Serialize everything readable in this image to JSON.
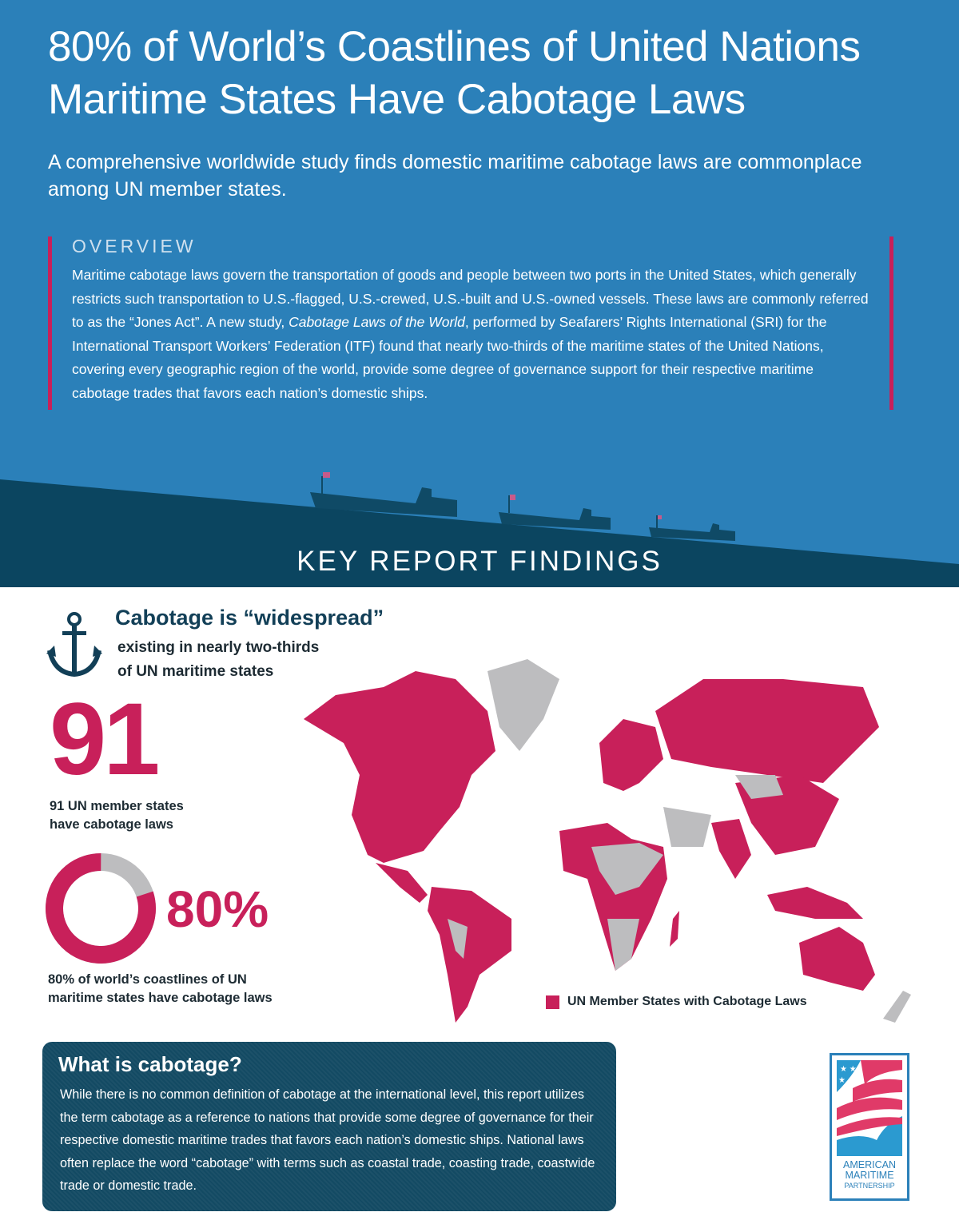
{
  "header": {
    "title": "80% of World’s Coastlines of United Nations Maritime States Have Cabotage Laws",
    "subtitle": "A comprehensive worldwide study finds domestic maritime cabotage laws are commonplace among UN member states."
  },
  "overview": {
    "label": "OVERVIEW",
    "body_pre": "Maritime cabotage laws govern the transportation of goods and people between two ports in the United States, which generally restricts such transportation to U.S.-flagged, U.S.-crewed, U.S.-built and U.S.-owned vessels.  These laws are commonly referred to as the “Jones Act”.  A new study, ",
    "body_italic": "Cabotage Laws of the World",
    "body_post": ", performed by Seafarers’ Rights International (SRI) for the International Transport Workers’ Federation (ITF) found that nearly two-thirds of the maritime states of the United Nations, covering every geographic region of the world, provide some degree of governance support for their respective maritime cabotage trades that favors each nation’s domestic ships."
  },
  "section_title": "KEY  REPORT FINDINGS",
  "findings": {
    "heading": "Cabotage is “widespread”",
    "subheading_1": "existing in nearly two-thirds",
    "subheading_2": "of UN maritime states",
    "stat_number": "91",
    "stat_caption_1": "91 UN member states",
    "stat_caption_2": "have cabotage laws",
    "coastline_percent": 80,
    "coastline_label": "80%",
    "coastline_caption_1": "80% of world’s coastlines of UN",
    "coastline_caption_2": "maritime states have cabotage laws",
    "map_legend": "UN Member States with Cabotage Laws"
  },
  "what": {
    "title": "What is cabotage?",
    "body": "While there is no common definition of cabotage at the international level, this report utilizes the term cabotage as a reference to nations that provide some degree of governance for their respective domestic maritime trades that favors each nation’s domestic ships.  National laws often replace the word “cabotage” with terms such as coastal trade, coasting trade, coastwide trade or domestic trade."
  },
  "logo": {
    "line1": "AMERICAN",
    "line2": "MARITIME",
    "line3": "PARTNERSHIP"
  },
  "colors": {
    "blue": "#2b80b9",
    "navy": "#0b4560",
    "crimson": "#c8205a",
    "gray": "#bdbdbf"
  }
}
